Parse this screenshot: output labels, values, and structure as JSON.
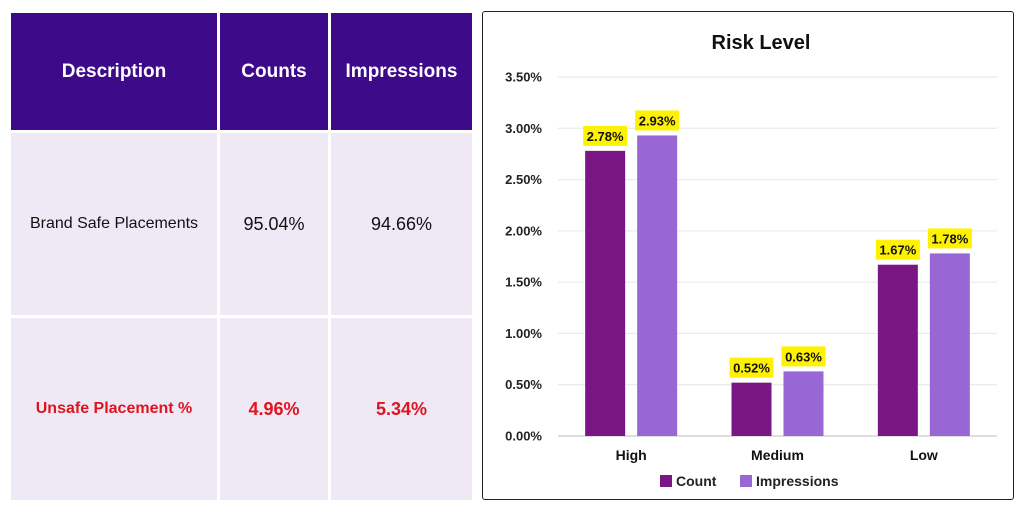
{
  "table": {
    "headers": [
      "Description",
      "Counts",
      "Impressions"
    ],
    "rows": [
      {
        "description": "Brand Safe Placements",
        "counts": "95.04%",
        "impressions": "94.66%"
      },
      {
        "description": "Unsafe Placement %",
        "counts": "4.96%",
        "impressions": "5.34%"
      }
    ],
    "colors": {
      "header_bg": "#3d0a8a",
      "cell_bg": "#efe9f6",
      "unsafe_text": "#e0141e"
    }
  },
  "chart_data": {
    "type": "bar",
    "title": "Risk Level",
    "categories": [
      "High",
      "Medium",
      "Low"
    ],
    "series": [
      {
        "name": "Count",
        "values": [
          2.78,
          0.52,
          1.67
        ],
        "labels": [
          "2.78%",
          "0.52%",
          "1.67%"
        ],
        "color": "#7a1785"
      },
      {
        "name": "Impressions",
        "values": [
          2.93,
          0.63,
          1.78
        ],
        "labels": [
          "2.93%",
          "0.63%",
          "1.78%"
        ],
        "color": "#9966d6"
      }
    ],
    "ylim": [
      0,
      3.5
    ],
    "y_ticks": [
      "0.00%",
      "0.50%",
      "1.00%",
      "1.50%",
      "2.00%",
      "2.50%",
      "3.00%",
      "3.50%"
    ],
    "xlabel": "",
    "ylabel": "",
    "grid": true,
    "legend_position": "bottom",
    "data_label_bg": "#fff200"
  }
}
